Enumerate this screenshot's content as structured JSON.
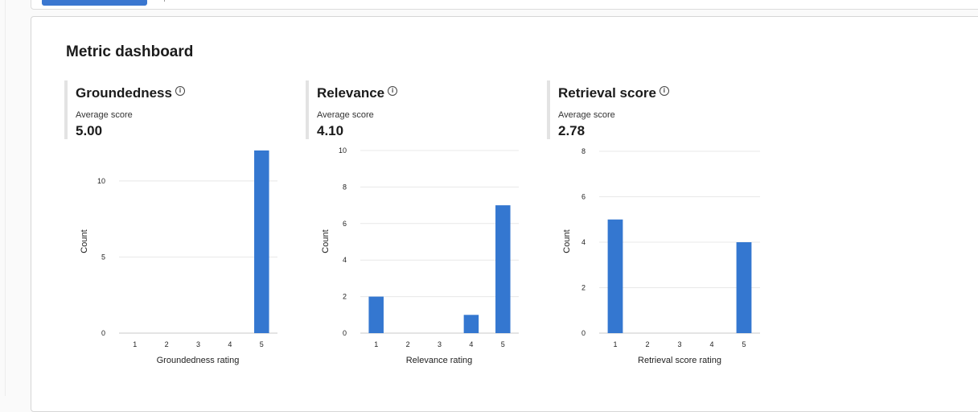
{
  "dashboard": {
    "title": "Metric dashboard",
    "metrics": [
      {
        "title": "Groundedness",
        "avg_label": "Average score",
        "avg_value": "5.00"
      },
      {
        "title": "Relevance",
        "avg_label": "Average score",
        "avg_value": "4.10"
      },
      {
        "title": "Retrieval score",
        "avg_label": "Average score",
        "avg_value": "2.78"
      }
    ]
  },
  "colors": {
    "bar": "#3477d0",
    "grid": "#e8e8e8",
    "axis": "#c8c8c8"
  },
  "chart_data": [
    {
      "type": "bar",
      "categories": [
        "1",
        "2",
        "3",
        "4",
        "5"
      ],
      "values": [
        0,
        0,
        0,
        0,
        12
      ],
      "xlabel": "Groundedness rating",
      "ylabel": "Count",
      "ylim": [
        0,
        12
      ],
      "yticks": [
        0,
        5,
        10
      ],
      "grid": true
    },
    {
      "type": "bar",
      "categories": [
        "1",
        "2",
        "3",
        "4",
        "5"
      ],
      "values": [
        2,
        0,
        0,
        1,
        7
      ],
      "xlabel": "Relevance rating",
      "ylabel": "Count",
      "ylim": [
        0,
        10
      ],
      "yticks": [
        0,
        2,
        4,
        6,
        8,
        10
      ],
      "grid": true
    },
    {
      "type": "bar",
      "categories": [
        "1",
        "2",
        "3",
        "4",
        "5"
      ],
      "values": [
        5,
        0,
        0,
        0,
        4
      ],
      "xlabel": "Retrieval score rating",
      "ylabel": "Count",
      "ylim": [
        0,
        8
      ],
      "yticks": [
        0,
        2,
        4,
        6,
        8
      ],
      "grid": true
    }
  ]
}
